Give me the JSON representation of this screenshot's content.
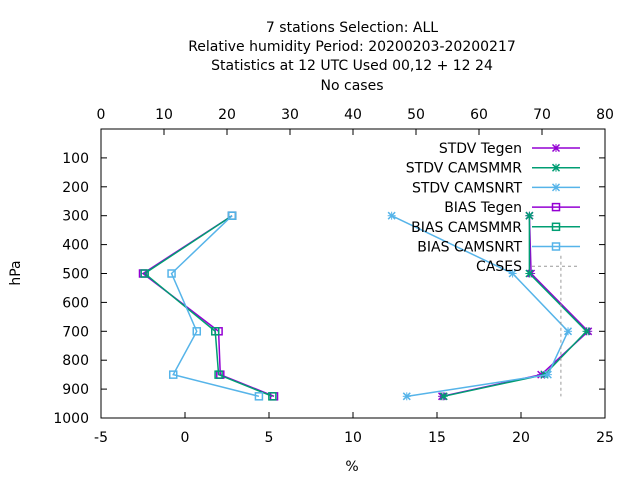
{
  "title_lines": [
    "7 stations Selection: ALL",
    "Relative humidity  Period: 20200203-20200217",
    "Statistics at 12 UTC  Used  00,12  + 12 24",
    "No cases"
  ],
  "chart_data": {
    "type": "line",
    "xlabel": "%",
    "ylabel": "hPa",
    "x_bottom": {
      "range": [
        -5,
        25
      ],
      "ticks": [
        -5,
        0,
        5,
        10,
        15,
        20,
        25
      ]
    },
    "x_top": {
      "range": [
        0,
        80
      ],
      "ticks": [
        0,
        10,
        20,
        30,
        40,
        50,
        60,
        70,
        80
      ]
    },
    "y": {
      "range": [
        1000,
        0
      ],
      "reversed": true,
      "ticks": [
        100,
        200,
        300,
        400,
        500,
        600,
        700,
        800,
        900,
        1000
      ]
    },
    "grid": false,
    "legend_position": "top-right",
    "colors": {
      "tegen": "#9400d3",
      "camsmmr": "#009e73",
      "camsnrt": "#56b4e9",
      "cases": "#999999"
    },
    "series": [
      {
        "name": "STDV Tegen",
        "marker": "x",
        "color": "#9400d3",
        "x": [
          20.5,
          20.6,
          24.0,
          21.2,
          15.3
        ],
        "y": [
          300,
          500,
          700,
          850,
          925
        ]
      },
      {
        "name": "STDV CAMSMMR",
        "marker": "x",
        "color": "#009e73",
        "x": [
          20.5,
          20.5,
          23.9,
          21.4,
          15.4
        ],
        "y": [
          300,
          500,
          700,
          850,
          925
        ]
      },
      {
        "name": "STDV CAMSNRT",
        "marker": "x",
        "color": "#56b4e9",
        "x": [
          12.3,
          19.5,
          22.8,
          21.6,
          13.2
        ],
        "y": [
          300,
          500,
          700,
          850,
          925
        ]
      },
      {
        "name": "BIAS Tegen",
        "marker": "square",
        "color": "#9400d3",
        "x": [
          2.8,
          -2.5,
          2.0,
          2.1,
          5.3
        ],
        "y": [
          300,
          500,
          700,
          850,
          925
        ]
      },
      {
        "name": "BIAS CAMSMMR",
        "marker": "square",
        "color": "#009e73",
        "x": [
          2.8,
          -2.4,
          1.8,
          2.0,
          5.2
        ],
        "y": [
          300,
          500,
          700,
          850,
          925
        ]
      },
      {
        "name": "BIAS CAMSNRT",
        "marker": "square",
        "color": "#56b4e9",
        "x": [
          2.8,
          -0.8,
          0.7,
          -0.7,
          4.4
        ],
        "y": [
          300,
          500,
          700,
          850,
          925
        ]
      },
      {
        "name": "CASES",
        "marker": "none",
        "dashed": true,
        "color": "#999999",
        "axis": "top",
        "x": [
          73,
          73,
          73,
          73,
          73
        ],
        "y": [
          300,
          500,
          700,
          850,
          925
        ]
      }
    ]
  }
}
